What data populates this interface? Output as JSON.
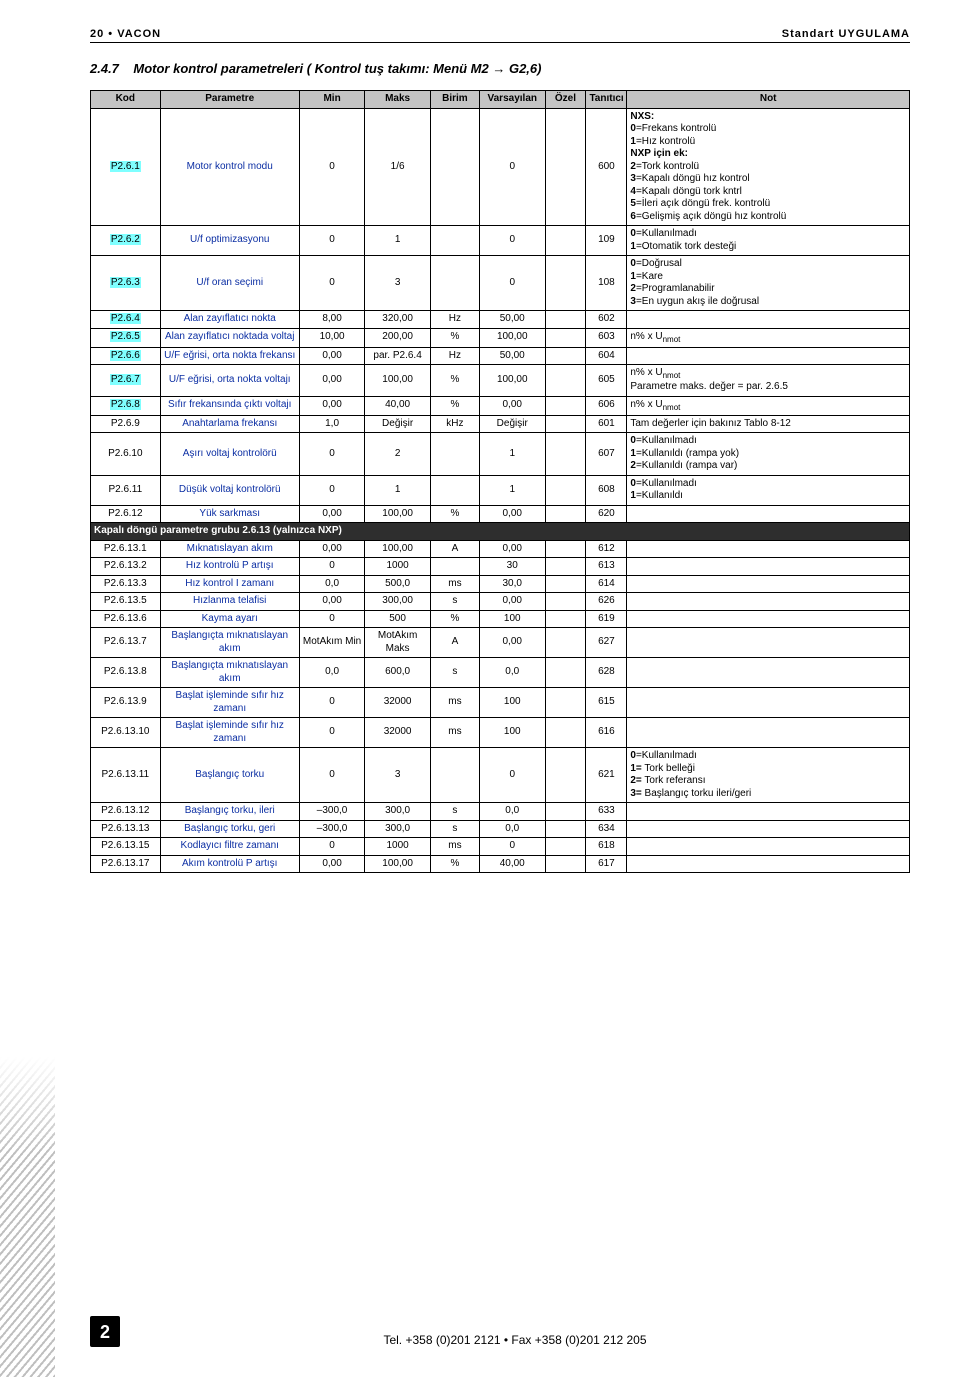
{
  "header": {
    "left": "20 • VACON",
    "right": "Standart UYGULAMA"
  },
  "section": {
    "number": "2.4.7",
    "title": "Motor kontrol parametreleri ( Kontrol tuş takımı: Menü M2 → G2,6)"
  },
  "columns": [
    "Kod",
    "Parametre",
    "Min",
    "Maks",
    "Birim",
    "Varsayılan",
    "Özel",
    "Tanıtıcı",
    "Not"
  ],
  "sublabel": "Kapalı döngü parametre grubu 2.6.13 (yalnızca NXP)",
  "rows": [
    {
      "k": "P2.6.1",
      "hl": true,
      "p": "Motor kontrol modu",
      "min": "0",
      "maks": "1/6",
      "b": "",
      "v": "0",
      "t": "600",
      "n": "<b>NXS:</b><br><b>0</b>=Frekans kontrolü<br><b>1</b>=Hız kontrolü<br><b>NXP için ek:</b><br><b>2</b>=Tork kontrolü<br><b>3</b>=Kapalı döngü hız kontrol<br><b>4</b>=Kapalı döngü tork kntrl<br><b>5</b>=İleri açık döngü frek. kontrolü<br><b>6</b>=Gelişmiş açık döngü hız kontrolü"
    },
    {
      "k": "P2.6.2",
      "hl": true,
      "p": "U/f optimizasyonu",
      "min": "0",
      "maks": "1",
      "b": "",
      "v": "0",
      "t": "109",
      "n": "<b>0</b>=Kullanılmadı<br><b>1</b>=Otomatik tork desteği"
    },
    {
      "k": "P2.6.3",
      "hl": true,
      "p": "U/f oran seçimi",
      "min": "0",
      "maks": "3",
      "b": "",
      "v": "0",
      "t": "108",
      "n": "<b>0</b>=Doğrusal<br><b>1</b>=Kare<br><b>2</b>=Programlanabilir<br><b>3</b>=En uygun akış ile doğrusal"
    },
    {
      "k": "P2.6.4",
      "hl": true,
      "p": "Alan zayıflatıcı nokta",
      "min": "8,00",
      "maks": "320,00",
      "b": "Hz",
      "v": "50,00",
      "t": "602",
      "n": ""
    },
    {
      "k": "P2.6.5",
      "hl": true,
      "p": "Alan zayıflatıcı noktada voltaj",
      "min": "10,00",
      "maks": "200,00",
      "b": "%",
      "v": "100,00",
      "t": "603",
      "n": "n% x U<sub>nmot</sub>"
    },
    {
      "k": "P2.6.6",
      "hl": true,
      "p": "U/F eğrisi, orta nokta frekansı",
      "min": "0,00",
      "maks": "par. P2.6.4",
      "b": "Hz",
      "v": "50,00",
      "t": "604",
      "n": ""
    },
    {
      "k": "P2.6.7",
      "hl": true,
      "p": "U/F eğrisi, orta nokta voltajı",
      "min": "0,00",
      "maks": "100,00",
      "b": "%",
      "v": "100,00",
      "t": "605",
      "n": "n% x U<sub>nmot</sub><br>Parametre maks. değer = par. 2.6.5"
    },
    {
      "k": "P2.6.8",
      "hl": true,
      "p": "Sıfır frekansında çıktı voltajı",
      "min": "0,00",
      "maks": "40,00",
      "b": "%",
      "v": "0,00",
      "t": "606",
      "n": "n% x U<sub>nmot</sub>"
    },
    {
      "k": "P2.6.9",
      "hl": false,
      "p": "Anahtarlama frekansı",
      "min": "1,0",
      "maks": "Değişir",
      "b": "kHz",
      "v": "Değişir",
      "t": "601",
      "n": "Tam değerler için bakınız Tablo 8-12"
    },
    {
      "k": "P2.6.10",
      "hl": false,
      "p": "Aşırı voltaj kontrolörü",
      "min": "0",
      "maks": "2",
      "b": "",
      "v": "1",
      "t": "607",
      "n": "<b>0</b>=Kullanılmadı<br><b>1</b>=Kullanıldı (rampa yok)<br><b>2</b>=Kullanıldı (rampa var)"
    },
    {
      "k": "P2.6.11",
      "hl": false,
      "p": "Düşük voltaj kontrolörü",
      "min": "0",
      "maks": "1",
      "b": "",
      "v": "1",
      "t": "608",
      "n": "<b>0</b>=Kullanılmadı<br><b>1</b>=Kullanıldı"
    },
    {
      "k": "P2.6.12",
      "hl": false,
      "p": "Yük sarkması",
      "min": "0,00",
      "maks": "100,00",
      "b": "%",
      "v": "0,00",
      "t": "620",
      "n": ""
    }
  ],
  "rows2": [
    {
      "k": "P2.6.13.1",
      "p": "Mıknatıslayan akım",
      "min": "0,00",
      "maks": "100,00",
      "b": "A",
      "v": "0,00",
      "t": "612",
      "n": ""
    },
    {
      "k": "P2.6.13.2",
      "p": "Hız kontrolü P artışı",
      "min": "0",
      "maks": "1000",
      "b": "",
      "v": "30",
      "t": "613",
      "n": ""
    },
    {
      "k": "P2.6.13.3",
      "p": "Hız kontrol I zamanı",
      "min": "0,0",
      "maks": "500,0",
      "b": "ms",
      "v": "30,0",
      "t": "614",
      "n": ""
    },
    {
      "k": "P2.6.13.5",
      "p": "Hızlanma telafisi",
      "min": "0,00",
      "maks": "300,00",
      "b": "s",
      "v": "0,00",
      "t": "626",
      "n": ""
    },
    {
      "k": "P2.6.13.6",
      "p": "Kayma ayarı",
      "min": "0",
      "maks": "500",
      "b": "%",
      "v": "100",
      "t": "619",
      "n": ""
    },
    {
      "k": "P2.6.13.7",
      "p": "Başlangıçta mıknatıslayan akım",
      "min": "MotAkım Min",
      "maks": "MotAkım Maks",
      "b": "A",
      "v": "0,00",
      "t": "627",
      "n": ""
    },
    {
      "k": "P2.6.13.8",
      "p": "Başlangıçta mıknatıslayan akım",
      "min": "0,0",
      "maks": "600,0",
      "b": "s",
      "v": "0,0",
      "t": "628",
      "n": ""
    },
    {
      "k": "P2.6.13.9",
      "p": "Başlat işleminde sıfır hız zamanı",
      "min": "0",
      "maks": "32000",
      "b": "ms",
      "v": "100",
      "t": "615",
      "n": ""
    },
    {
      "k": "P2.6.13.10",
      "p": "Başlat işleminde sıfır hız zamanı",
      "min": "0",
      "maks": "32000",
      "b": "ms",
      "v": "100",
      "t": "616",
      "n": ""
    },
    {
      "k": "P2.6.13.11",
      "p": "Başlangıç torku",
      "min": "0",
      "maks": "3",
      "b": "",
      "v": "0",
      "t": "621",
      "n": "<b>0</b>=Kullanılmadı<br><b>1=</b> Tork belleği<br><b>2=</b> Tork referansı<br><b>3=</b> Başlangıç torku ileri/geri"
    },
    {
      "k": "P2.6.13.12",
      "p": "Başlangıç torku, ileri",
      "min": "–300,0",
      "maks": "300,0",
      "b": "s",
      "v": "0,0",
      "t": "633",
      "n": ""
    },
    {
      "k": "P2.6.13.13",
      "p": "Başlangıç torku, geri",
      "min": "–300,0",
      "maks": "300,0",
      "b": "s",
      "v": "0,0",
      "t": "634",
      "n": ""
    },
    {
      "k": "P2.6.13.15",
      "p": "Kodlayıcı filtre zamanı",
      "min": "0",
      "maks": "1000",
      "b": "ms",
      "v": "0",
      "t": "618",
      "n": ""
    },
    {
      "k": "P2.6.13.17",
      "p": "Akım kontrolü P artışı",
      "min": "0,00",
      "maks": "100,00",
      "b": "%",
      "v": "40,00",
      "t": "617",
      "n": ""
    }
  ],
  "footer": {
    "page": "2",
    "text": "Tel. +358 (0)201 2121 • Fax +358 (0)201 212 205"
  }
}
